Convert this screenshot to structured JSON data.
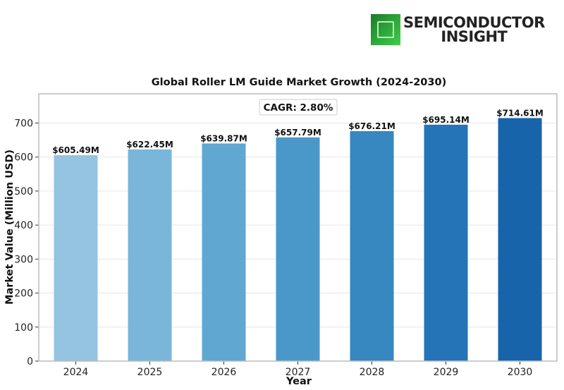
{
  "logo": {
    "line1": "SEMICONDUCTOR",
    "line2": "INSIGHT"
  },
  "chart_data": {
    "type": "bar",
    "title": "Global Roller LM Guide Market Growth (2024-2030)",
    "xlabel": "Year",
    "ylabel": "Market Value (Million USD)",
    "categories": [
      "2024",
      "2025",
      "2026",
      "2027",
      "2028",
      "2029",
      "2030"
    ],
    "values": [
      605.49,
      622.45,
      639.87,
      657.79,
      676.21,
      695.14,
      714.61
    ],
    "data_labels": [
      "$605.49M",
      "$622.45M",
      "$639.87M",
      "$657.79M",
      "$676.21M",
      "$695.14M",
      "$714.61M"
    ],
    "colors": [
      "#94c4df",
      "#7ab6d9",
      "#60a7d2",
      "#4a98c9",
      "#3787c0",
      "#2474b7",
      "#1764ab"
    ],
    "annotation": "CAGR: 2.80%",
    "ylim": [
      0,
      786
    ],
    "yticks": [
      0,
      100,
      200,
      300,
      400,
      500,
      600,
      700
    ],
    "grid": true
  }
}
